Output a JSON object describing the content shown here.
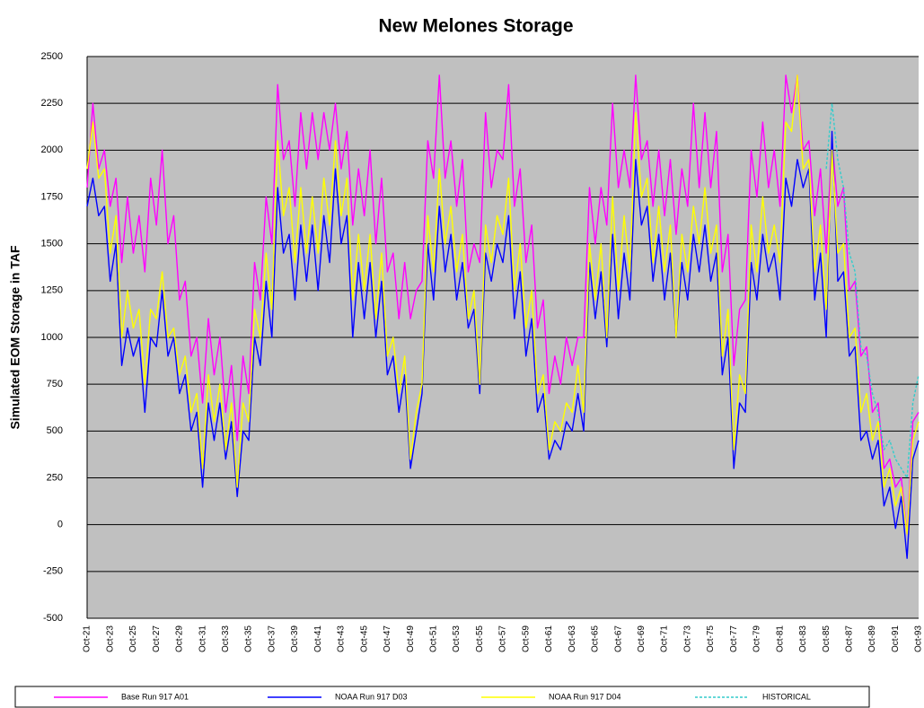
{
  "chart_data": {
    "type": "line",
    "title": "New Melones Storage",
    "y_label": "Simulated EOM Storage in TAF",
    "categories": [
      "Oct-21",
      null,
      null,
      null,
      "Oct-23",
      null,
      null,
      null,
      "Oct-25",
      null,
      null,
      null,
      "Oct-27",
      null,
      null,
      null,
      "Oct-29",
      null,
      null,
      null,
      "Oct-31",
      null,
      null,
      null,
      "Oct-33",
      null,
      null,
      null,
      "Oct-35",
      null,
      null,
      null,
      "Oct-37",
      null,
      null,
      null,
      "Oct-39",
      null,
      null,
      null,
      "Oct-41",
      null,
      null,
      null,
      "Oct-43",
      null,
      null,
      null,
      "Oct-45",
      null,
      null,
      null,
      "Oct-47",
      null,
      null,
      null,
      "Oct-49",
      null,
      null,
      null,
      "Oct-51",
      null,
      null,
      null,
      "Oct-53",
      null,
      null,
      null,
      "Oct-55",
      null,
      null,
      null,
      "Oct-57",
      null,
      null,
      null,
      "Oct-59",
      null,
      null,
      null,
      "Oct-61",
      null,
      null,
      null,
      "Oct-63",
      null,
      null,
      null,
      "Oct-65",
      null,
      null,
      null,
      "Oct-67",
      null,
      null,
      null,
      "Oct-69",
      null,
      null,
      null,
      "Oct-71",
      null,
      null,
      null,
      "Oct-73",
      null,
      null,
      null,
      "Oct-75",
      null,
      null,
      null,
      "Oct-77",
      null,
      null,
      null,
      "Oct-79",
      null,
      null,
      null,
      "Oct-81",
      null,
      null,
      null,
      "Oct-83",
      null,
      null,
      null,
      "Oct-85",
      null,
      null,
      null,
      "Oct-87",
      null,
      null,
      null,
      "Oct-89",
      null,
      null,
      null,
      "Oct-91",
      null,
      null,
      null,
      "Oct-93"
    ],
    "ylim": [
      -500,
      2500
    ],
    "yticks": [
      -500,
      -250,
      0,
      250,
      500,
      750,
      1000,
      1250,
      1500,
      1750,
      2000,
      2250,
      2500
    ],
    "grid": true,
    "series": [
      {
        "name": "Base Run 917 A01",
        "color": "#ff00ff",
        "dashed": false,
        "values": [
          1800,
          2250,
          1900,
          2000,
          1700,
          1850,
          1400,
          1750,
          1450,
          1650,
          1350,
          1850,
          1600,
          2000,
          1500,
          1650,
          1200,
          1300,
          900,
          1000,
          650,
          1100,
          800,
          1000,
          600,
          850,
          450,
          900,
          700,
          1400,
          1200,
          1750,
          1500,
          2350,
          1950,
          2050,
          1700,
          2200,
          1900,
          2200,
          1950,
          2200,
          2000,
          2250,
          1900,
          2100,
          1600,
          1900,
          1650,
          2000,
          1500,
          1850,
          1350,
          1450,
          1100,
          1400,
          1100,
          1250,
          1300,
          2050,
          1850,
          2400,
          1850,
          2050,
          1700,
          1950,
          1350,
          1500,
          1400,
          2200,
          1800,
          2000,
          1950,
          2350,
          1700,
          1900,
          1400,
          1600,
          1050,
          1200,
          700,
          900,
          750,
          1000,
          850,
          1000,
          1000,
          1800,
          1500,
          1800,
          1600,
          2250,
          1800,
          2000,
          1800,
          2400,
          1950,
          2050,
          1700,
          2000,
          1650,
          1950,
          1550,
          1900,
          1700,
          2250,
          1800,
          2200,
          1800,
          2100,
          1350,
          1550,
          850,
          1150,
          1200,
          2000,
          1750,
          2150,
          1800,
          2000,
          1700,
          2400,
          2200,
          2400,
          2000,
          2050,
          1650,
          1900,
          1450,
          2050,
          1700,
          1800,
          1250,
          1300,
          900,
          950,
          600,
          650,
          300,
          350,
          200,
          250,
          -50,
          550,
          600
        ]
      },
      {
        "name": "NOAA Run 917 D03",
        "color": "#0000ff",
        "dashed": false,
        "values": [
          1700,
          1850,
          1650,
          1700,
          1300,
          1500,
          850,
          1050,
          900,
          1000,
          600,
          1000,
          950,
          1250,
          900,
          1000,
          700,
          800,
          500,
          600,
          200,
          650,
          450,
          650,
          350,
          550,
          150,
          500,
          450,
          1000,
          850,
          1300,
          1000,
          1800,
          1450,
          1550,
          1200,
          1600,
          1300,
          1600,
          1250,
          1650,
          1400,
          1900,
          1500,
          1650,
          1000,
          1400,
          1100,
          1400,
          1000,
          1300,
          800,
          900,
          600,
          800,
          300,
          500,
          700,
          1500,
          1200,
          1700,
          1350,
          1550,
          1200,
          1400,
          1050,
          1150,
          700,
          1450,
          1300,
          1500,
          1400,
          1650,
          1100,
          1350,
          900,
          1100,
          600,
          700,
          350,
          450,
          400,
          550,
          500,
          700,
          500,
          1400,
          1100,
          1350,
          950,
          1550,
          1100,
          1450,
          1200,
          1950,
          1600,
          1700,
          1300,
          1550,
          1200,
          1450,
          1000,
          1400,
          1200,
          1550,
          1350,
          1600,
          1300,
          1450,
          800,
          1000,
          300,
          650,
          600,
          1400,
          1200,
          1550,
          1350,
          1450,
          1200,
          1850,
          1700,
          1950,
          1800,
          1900,
          1200,
          1450,
          1000,
          2100,
          1300,
          1350,
          900,
          950,
          450,
          500,
          350,
          450,
          100,
          200,
          -20,
          150,
          -180,
          350,
          450
        ]
      },
      {
        "name": "NOAA Run 917 D04",
        "color": "#ffff00",
        "dashed": false,
        "values": [
          1900,
          2150,
          1850,
          1900,
          1450,
          1650,
          1000,
          1250,
          1050,
          1150,
          750,
          1150,
          1100,
          1350,
          1000,
          1050,
          800,
          900,
          600,
          700,
          300,
          800,
          550,
          750,
          400,
          650,
          200,
          650,
          550,
          1150,
          1000,
          1450,
          1150,
          2050,
          1650,
          1800,
          1400,
          1800,
          1450,
          1750,
          1450,
          1850,
          1600,
          2050,
          1650,
          1850,
          1200,
          1550,
          1250,
          1550,
          1100,
          1450,
          900,
          1000,
          700,
          900,
          350,
          600,
          750,
          1650,
          1350,
          1900,
          1500,
          1700,
          1350,
          1550,
          1100,
          1250,
          750,
          1600,
          1400,
          1650,
          1550,
          1850,
          1250,
          1500,
          1050,
          1250,
          700,
          800,
          400,
          550,
          500,
          650,
          600,
          850,
          600,
          1500,
          1200,
          1500,
          1000,
          1750,
          1250,
          1650,
          1350,
          2200,
          1750,
          1850,
          1400,
          1700,
          1350,
          1600,
          1000,
          1550,
          1350,
          1700,
          1500,
          1800,
          1450,
          1600,
          900,
          1150,
          400,
          800,
          700,
          1600,
          1350,
          1750,
          1450,
          1600,
          1400,
          2150,
          2100,
          2400,
          1900,
          1950,
          1350,
          1600,
          1150,
          2000,
          1450,
          1500,
          1000,
          1050,
          600,
          700,
          450,
          550,
          200,
          300,
          100,
          200,
          -50,
          450,
          550
        ]
      },
      {
        "name": "HISTORICAL",
        "color": "#33cccc",
        "dashed": true,
        "values": [
          null,
          null,
          null,
          null,
          null,
          null,
          null,
          null,
          null,
          null,
          null,
          null,
          null,
          null,
          null,
          null,
          null,
          null,
          null,
          null,
          null,
          null,
          null,
          null,
          null,
          null,
          null,
          null,
          null,
          null,
          null,
          null,
          null,
          null,
          null,
          null,
          null,
          null,
          null,
          null,
          null,
          null,
          null,
          null,
          null,
          null,
          null,
          null,
          null,
          null,
          null,
          null,
          null,
          null,
          null,
          null,
          null,
          null,
          null,
          null,
          null,
          null,
          null,
          null,
          null,
          null,
          null,
          null,
          null,
          null,
          null,
          null,
          null,
          null,
          null,
          null,
          null,
          null,
          null,
          null,
          null,
          null,
          null,
          null,
          null,
          null,
          null,
          null,
          null,
          null,
          null,
          null,
          null,
          null,
          null,
          null,
          null,
          null,
          null,
          null,
          null,
          null,
          null,
          null,
          null,
          null,
          null,
          null,
          null,
          null,
          null,
          null,
          null,
          null,
          null,
          null,
          null,
          null,
          null,
          null,
          null,
          null,
          null,
          null,
          null,
          null,
          null,
          null,
          1900,
          2250,
          1950,
          1800,
          1450,
          1350,
          950,
          900,
          700,
          600,
          400,
          450,
          350,
          300,
          250,
          650,
          800
        ]
      }
    ]
  }
}
